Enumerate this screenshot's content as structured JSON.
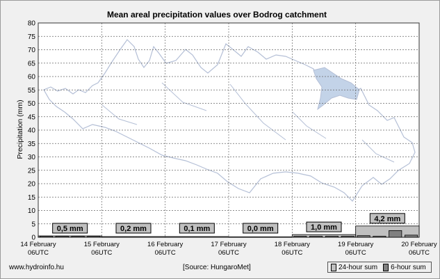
{
  "chart_data": {
    "type": "bar",
    "title": "Mean areal precipitation values over Bodrog catchment",
    "ylabel": "Precipitation (mm)",
    "xlabel": "",
    "ylim": [
      0,
      80
    ],
    "yticks": [
      0,
      5,
      10,
      15,
      20,
      25,
      30,
      35,
      40,
      45,
      50,
      55,
      60,
      65,
      70,
      75,
      80
    ],
    "grid": true,
    "x_ticks": [
      {
        "line1": "14 February",
        "line2": "06UTC"
      },
      {
        "line1": "15 February",
        "line2": "06UTC"
      },
      {
        "line1": "16 February",
        "line2": "06UTC"
      },
      {
        "line1": "17 February",
        "line2": "06UTC"
      },
      {
        "line1": "18 February",
        "line2": "06UTC"
      },
      {
        "line1": "19 February",
        "line2": "06UTC"
      },
      {
        "line1": "20 February",
        "line2": "06UTC"
      }
    ],
    "series": [
      {
        "name": "24-hour sum",
        "color": "#c0c0c0",
        "values": [
          0.5,
          0.2,
          0.1,
          0.0,
          1.0,
          4.2
        ]
      },
      {
        "name": "6-hour sum",
        "color": "#808080",
        "values": [
          0.1,
          0.1,
          0.1,
          0.1,
          0.0,
          0.0,
          0.0,
          0.0,
          0.0,
          0.0,
          0.0,
          0.0,
          0.0,
          0.0,
          0.0,
          0.0,
          0.1,
          0.3,
          0.3,
          0.3,
          0.6,
          0.3,
          2.5,
          0.8
        ]
      }
    ],
    "daily_labels": [
      "0,5 mm",
      "0,2 mm",
      "0,1 mm",
      "0,0 mm",
      "1,0 mm",
      "4,2 mm"
    ]
  },
  "footer": {
    "website": "www.hydroinfo.hu",
    "source": "[Source: HungaroMet]"
  },
  "colors": {
    "background": "#f0f0f0",
    "plot_background": "#ffffff",
    "map_outline": "#b4bfd6",
    "catchment_fill": "#c3d3e8",
    "grid": "#666666",
    "label_box": "#c0c0c0"
  }
}
